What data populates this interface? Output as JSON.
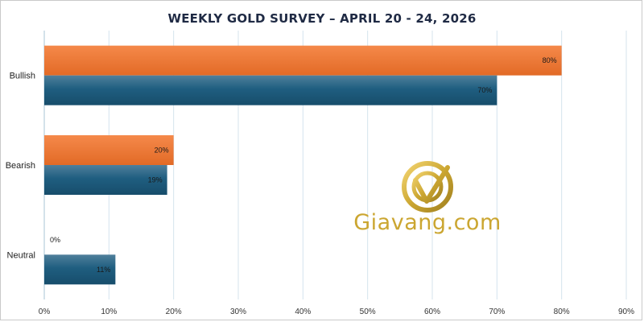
{
  "chart_data": {
    "type": "bar",
    "orientation": "horizontal",
    "title": "WEEKLY GOLD SURVEY – APRIL 20 - 24, 2026",
    "categories": [
      "Bullish",
      "Bearish",
      "Neutral"
    ],
    "series": [
      {
        "values": [
          80,
          20,
          0
        ],
        "labels": [
          "80%",
          "20%",
          "0%"
        ],
        "color": "#f07d3a"
      },
      {
        "values": [
          70,
          19,
          11
        ],
        "labels": [
          "70%",
          "19%",
          "11%"
        ],
        "color": "#1d5b7c"
      }
    ],
    "xlim": [
      0,
      90
    ],
    "x_ticks": [
      "0%",
      "10%",
      "20%",
      "30%",
      "40%",
      "50%",
      "60%",
      "70%",
      "80%",
      "90%"
    ],
    "grid": true,
    "legend": "none"
  },
  "watermark": {
    "text": "Giavang.com",
    "color": "#c9a227"
  }
}
